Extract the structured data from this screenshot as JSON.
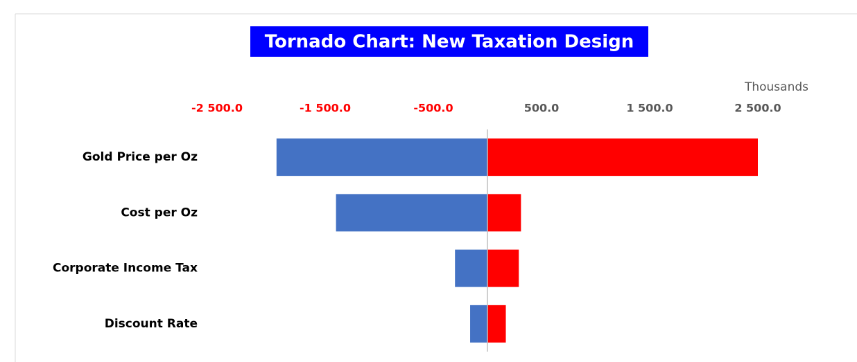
{
  "chart_data": {
    "type": "tornado",
    "title": "Tornado Chart: New Taxation Design",
    "display_units": "Thousands",
    "categories": [
      "Gold Price per Oz",
      "Cost per Oz",
      "Corporate Income Tax",
      "Discount Rate"
    ],
    "series": [
      {
        "color": "#4472c4",
        "values": [
          -1950,
          -1400,
          -300,
          -160
        ]
      },
      {
        "color": "#ff0000",
        "values": [
          2500,
          310,
          290,
          170
        ]
      }
    ],
    "xlim": [
      -2500,
      2500
    ],
    "xticks": [
      {
        "value": -2500,
        "label": "-2 500.0"
      },
      {
        "value": -1500,
        "label": "-1 500.0"
      },
      {
        "value": -500,
        "label": "-500.0"
      },
      {
        "value": 500,
        "label": "500.0"
      },
      {
        "value": 1500,
        "label": "1 500.0"
      },
      {
        "value": 2500,
        "label": "2 500.0"
      }
    ],
    "negative_tick_color": "#ff0000",
    "positive_tick_color": "#595959"
  }
}
